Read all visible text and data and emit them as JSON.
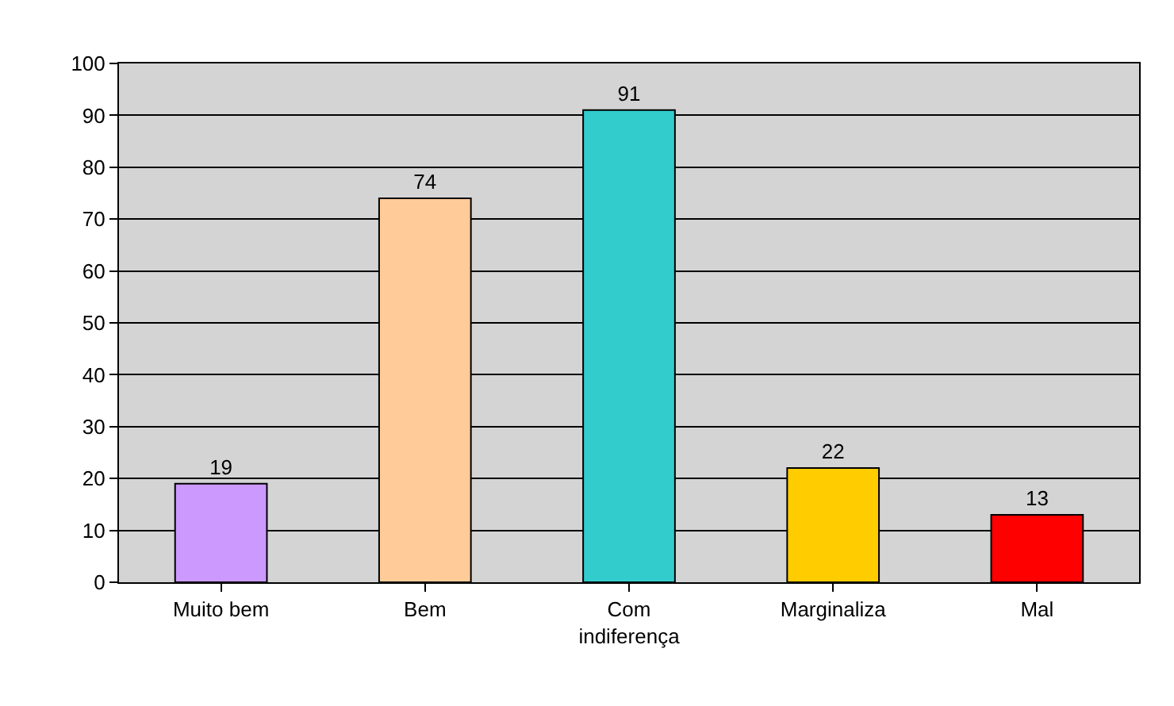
{
  "chart_data": {
    "type": "bar",
    "categories": [
      "Muito bem",
      "Bem",
      "Com indiferença",
      "Marginaliza",
      "Mal"
    ],
    "values": [
      19,
      74,
      91,
      22,
      13
    ],
    "colors": [
      "#cc99ff",
      "#ffcc99",
      "#33cccc",
      "#ffcc00",
      "#ff0000"
    ],
    "ylim": [
      0,
      100
    ],
    "yticks": [
      0,
      10,
      20,
      30,
      40,
      50,
      60,
      70,
      80,
      90,
      100
    ],
    "grid": "y",
    "data_labels": true
  }
}
